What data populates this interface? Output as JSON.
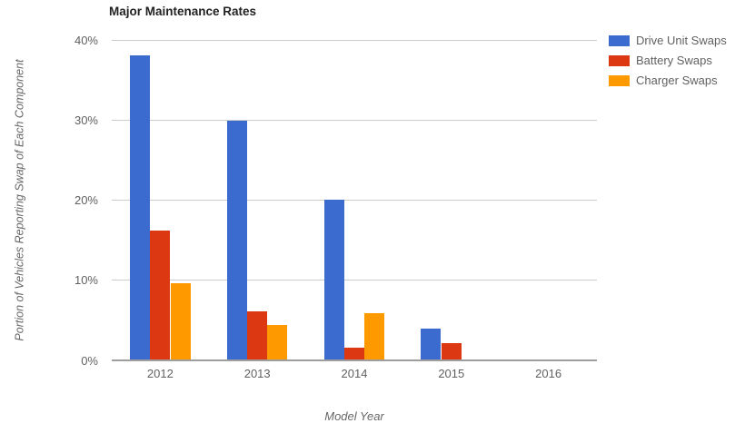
{
  "chart_data": {
    "type": "bar",
    "title": "Major Maintenance Rates",
    "xlabel": "Model Year",
    "ylabel": "Portion of Vehicles Reporting Swap of Each Component",
    "categories": [
      "2012",
      "2013",
      "2014",
      "2015",
      "2016"
    ],
    "series": [
      {
        "name": "Drive Unit Swaps",
        "color": "#3b6bce",
        "values": [
          38.0,
          29.8,
          20.0,
          3.8,
          0
        ]
      },
      {
        "name": "Battery Swaps",
        "color": "#dc3912",
        "values": [
          16.1,
          6.0,
          1.5,
          2.0,
          0
        ]
      },
      {
        "name": "Charger Swaps",
        "color": "#ff9900",
        "values": [
          9.5,
          4.3,
          5.8,
          0,
          0
        ]
      }
    ],
    "y_ticks": [
      {
        "label": "0%",
        "value": 0
      },
      {
        "label": "10%",
        "value": 10
      },
      {
        "label": "20%",
        "value": 20
      },
      {
        "label": "30%",
        "value": 30
      },
      {
        "label": "40%",
        "value": 40
      }
    ],
    "ylim": [
      0,
      40
    ],
    "grid": true,
    "legend_position": "right"
  },
  "colors": {
    "background": "#ffffff",
    "gridline": "#cccccc",
    "axis_line": "#9e9e9e",
    "title_text": "#212121",
    "tick_text": "#616161",
    "axis_title_text": "#666666",
    "legend_text": "#616161"
  }
}
